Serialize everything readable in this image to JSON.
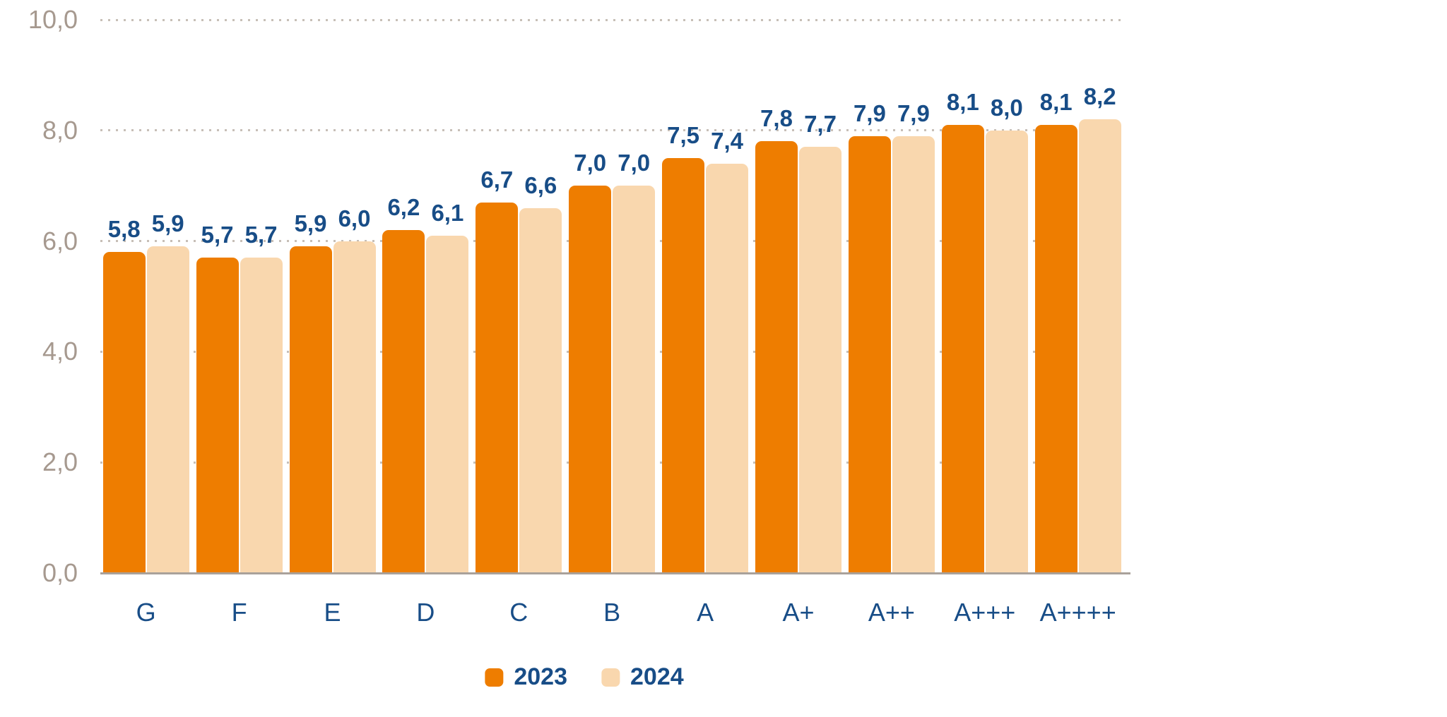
{
  "chart_data": {
    "type": "bar",
    "title": "",
    "xlabel": "",
    "ylabel": "",
    "categories": [
      "G",
      "F",
      "E",
      "D",
      "C",
      "B",
      "A",
      "A+",
      "A++",
      "A+++",
      "A++++"
    ],
    "series": [
      {
        "name": "2023",
        "color": "#EE7D00",
        "values": [
          5.8,
          5.7,
          5.9,
          6.2,
          6.7,
          7.0,
          7.5,
          7.8,
          7.9,
          8.1,
          8.1
        ],
        "labels": [
          "5,8",
          "5,7",
          "5,9",
          "6,2",
          "6,7",
          "7,0",
          "7,5",
          "7,8",
          "7,9",
          "8,1",
          "8,1"
        ]
      },
      {
        "name": "2024",
        "color": "#F9D7AE",
        "values": [
          5.9,
          5.7,
          6.0,
          6.1,
          6.6,
          7.0,
          7.4,
          7.7,
          7.9,
          8.0,
          8.2
        ],
        "labels": [
          "5,9",
          "5,7",
          "6,0",
          "6,1",
          "6,6",
          "7,0",
          "7,4",
          "7,7",
          "7,9",
          "8,0",
          "8,2"
        ]
      }
    ],
    "ylim": [
      0,
      10
    ],
    "yticks": {
      "values": [
        0,
        2,
        4,
        6,
        8,
        10
      ],
      "labels": [
        "0,0",
        "2,0",
        "4,0",
        "6,0",
        "8,0",
        "10,0"
      ]
    },
    "grid": "horizontal-dotted",
    "legend_position": "bottom-center",
    "decimal_separator": ","
  },
  "colors": {
    "background": "#ffffff",
    "value_label": "#184D87",
    "category_label": "#184D87",
    "tick_label": "#A6998F",
    "axis_line": "#A9A19A",
    "grid_dot": "#C7BFB7",
    "legend_text": "#184D87"
  }
}
